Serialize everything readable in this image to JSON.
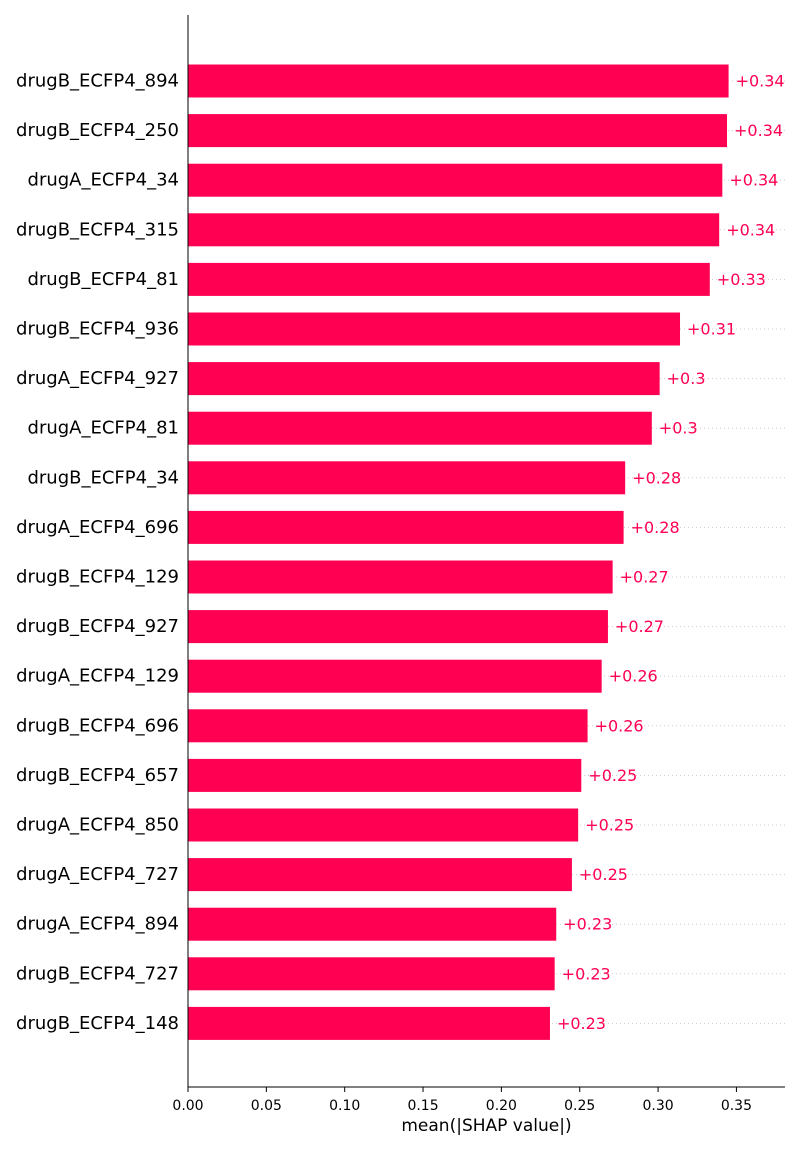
{
  "chart_data": {
    "type": "bar",
    "orientation": "horizontal",
    "categories": [
      "drugB_ECFP4_894",
      "drugB_ECFP4_250",
      "drugA_ECFP4_34",
      "drugB_ECFP4_315",
      "drugB_ECFP4_81",
      "drugB_ECFP4_936",
      "drugA_ECFP4_927",
      "drugA_ECFP4_81",
      "drugB_ECFP4_34",
      "drugA_ECFP4_696",
      "drugB_ECFP4_129",
      "drugB_ECFP4_927",
      "drugA_ECFP4_129",
      "drugB_ECFP4_696",
      "drugB_ECFP4_657",
      "drugA_ECFP4_850",
      "drugA_ECFP4_727",
      "drugA_ECFP4_894",
      "drugB_ECFP4_727",
      "drugB_ECFP4_148"
    ],
    "values": [
      0.345,
      0.344,
      0.341,
      0.339,
      0.333,
      0.314,
      0.301,
      0.296,
      0.279,
      0.278,
      0.271,
      0.268,
      0.264,
      0.255,
      0.251,
      0.249,
      0.245,
      0.235,
      0.234,
      0.231
    ],
    "value_labels": [
      "+0.34",
      "+0.34",
      "+0.34",
      "+0.34",
      "+0.33",
      "+0.31",
      "+0.3",
      "+0.3",
      "+0.28",
      "+0.28",
      "+0.27",
      "+0.27",
      "+0.26",
      "+0.26",
      "+0.25",
      "+0.25",
      "+0.25",
      "+0.23",
      "+0.23",
      "+0.23"
    ],
    "xticks": [
      0.0,
      0.05,
      0.1,
      0.15,
      0.2,
      0.25,
      0.3,
      0.35
    ],
    "xtick_labels": [
      "0.00",
      "0.05",
      "0.10",
      "0.15",
      "0.20",
      "0.25",
      "0.30",
      "0.35"
    ],
    "xlim": [
      0,
      0.381
    ],
    "xlabel": "mean(|SHAP value|)",
    "title": "",
    "ylabel": "",
    "grid": "dotted row guides",
    "colors": {
      "bar": "#ff0052",
      "value_text": "#ff0052",
      "axis": "#000000",
      "guide": "#cccccc"
    }
  }
}
